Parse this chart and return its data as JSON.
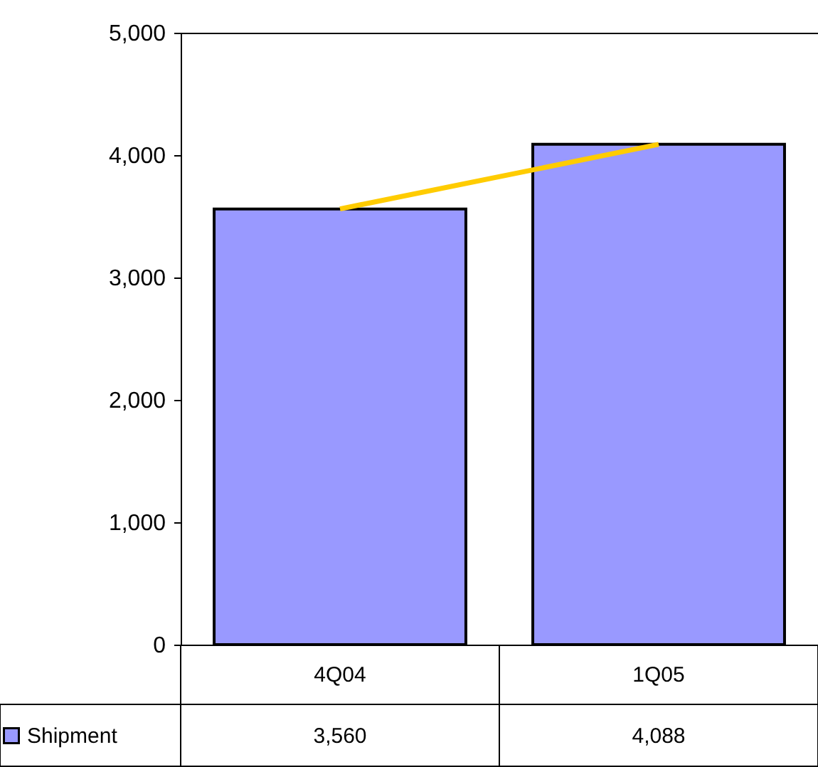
{
  "chart_data": {
    "type": "bar",
    "categories": [
      "4Q04",
      "1Q05"
    ],
    "series": [
      {
        "name": "Shipment",
        "color": "#9999ff",
        "values": [
          3560,
          4088
        ],
        "value_labels": [
          "3,560",
          "4,088"
        ]
      },
      {
        "type": "line",
        "color": "#ffcc00",
        "values": [
          3560,
          4088
        ]
      }
    ],
    "ylim": [
      0,
      5000
    ],
    "yticks": [
      0,
      {
        "value": 1000,
        "label": "1,000"
      },
      {
        "value": 2000,
        "label": "2,000"
      },
      {
        "value": 3000,
        "label": "3,000"
      },
      {
        "value": 4000,
        "label": "4,000"
      },
      {
        "value": 5000,
        "label": "5,000"
      }
    ],
    "grid": false,
    "legend": "bottom"
  }
}
